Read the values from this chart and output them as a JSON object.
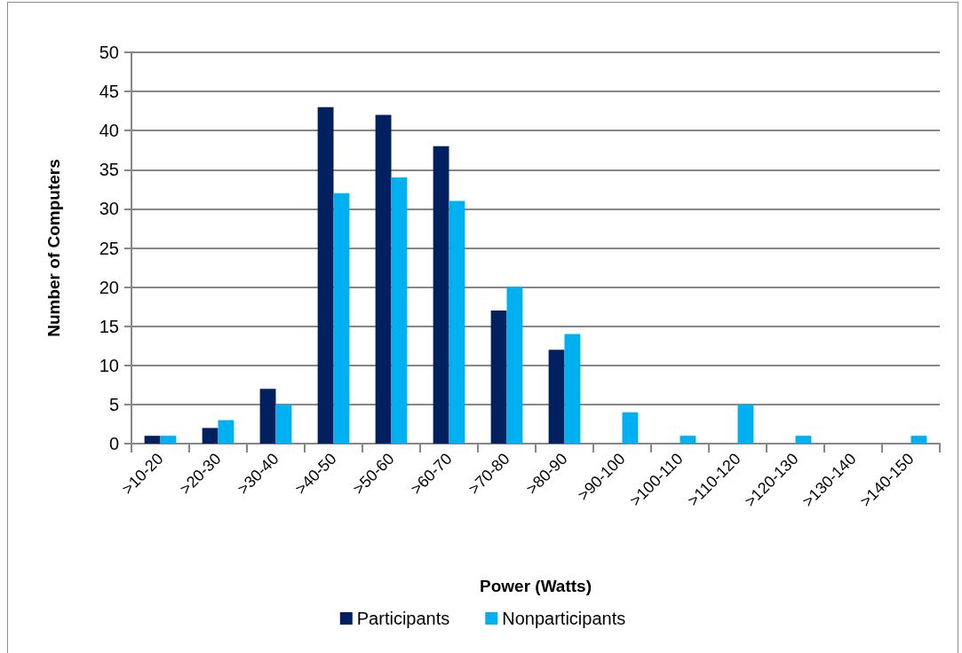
{
  "chart_data": {
    "type": "bar",
    "xlabel": "Power (Watts)",
    "ylabel": "Number of Computers",
    "categories": [
      ">10-20",
      ">20-30",
      ">30-40",
      ">40-50",
      ">50-60",
      ">60-70",
      ">70-80",
      ">80-90",
      ">90-100",
      ">100-110",
      ">110-120",
      ">120-130",
      ">130-140",
      ">140-150"
    ],
    "series": [
      {
        "name": "Participants",
        "color": "#002060",
        "values": [
          1,
          2,
          7,
          43,
          42,
          38,
          17,
          12,
          0,
          0,
          0,
          0,
          0,
          0
        ]
      },
      {
        "name": "Nonparticipants",
        "color": "#00b0f0",
        "values": [
          1,
          3,
          5,
          32,
          34,
          31,
          20,
          14,
          4,
          1,
          5,
          1,
          0,
          1
        ]
      }
    ],
    "ylim": [
      0,
      50
    ],
    "yticks": [
      0,
      5,
      10,
      15,
      20,
      25,
      30,
      35,
      40,
      45,
      50
    ],
    "grid": "y",
    "legend": "bottom"
  }
}
